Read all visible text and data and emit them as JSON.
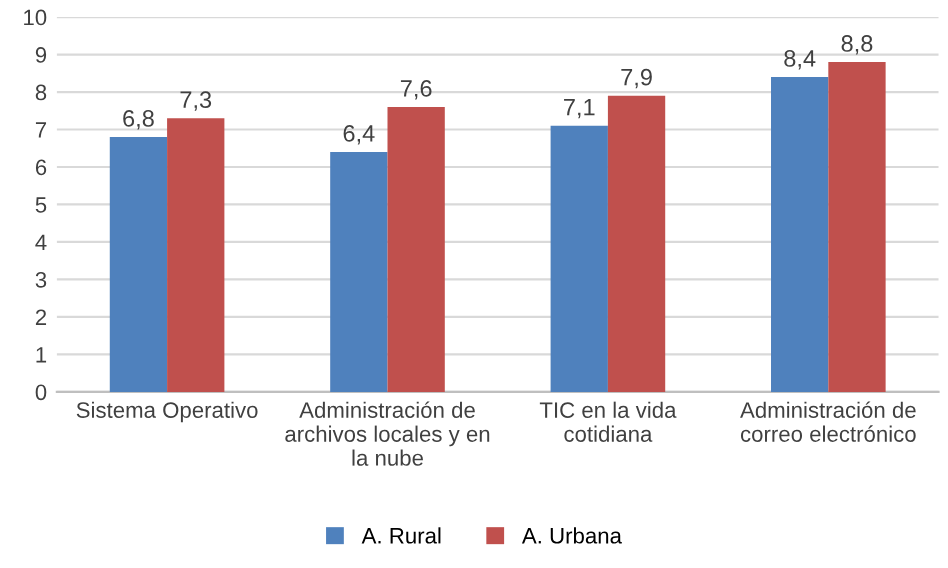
{
  "chart_data": {
    "type": "bar",
    "categories": [
      "Sistema Operativo",
      "Administración de archivos locales y en la nube",
      "TIC en la vida cotidiana",
      "Administración de correo electrónico"
    ],
    "series": [
      {
        "name": "A. Rural",
        "color": "#4f81bd",
        "values": [
          6.8,
          6.4,
          7.1,
          8.4
        ],
        "value_labels": [
          "6,8",
          "6,4",
          "7,1",
          "8,4"
        ]
      },
      {
        "name": "A. Urbana",
        "color": "#c0504d",
        "values": [
          7.3,
          7.6,
          7.9,
          8.8
        ],
        "value_labels": [
          "7,3",
          "7,6",
          "7,9",
          "8,8"
        ]
      }
    ],
    "ylim": [
      0,
      10
    ],
    "yticks": [
      0,
      1,
      2,
      3,
      4,
      5,
      6,
      7,
      8,
      9,
      10
    ],
    "grid": "y",
    "legend": "bottom"
  }
}
